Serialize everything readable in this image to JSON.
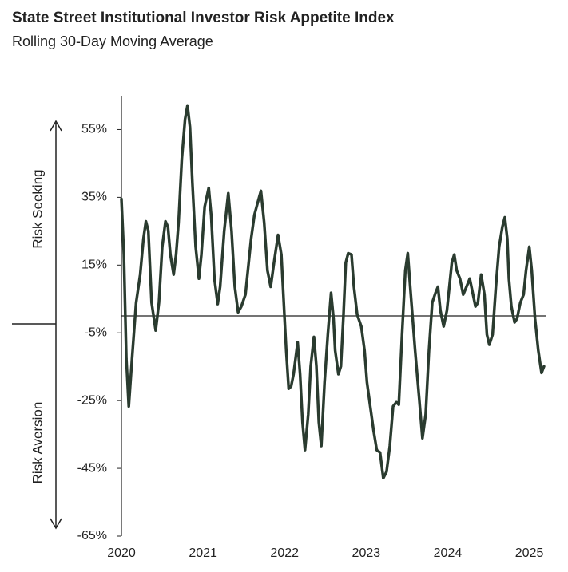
{
  "chart_data": {
    "type": "line",
    "title": "State Street Institutional Investor Risk Appetite Index",
    "subtitle": "Rolling 30-Day Moving Average",
    "annotations": [
      "Risk Seeking",
      "Risk Aversion"
    ],
    "x": [
      2020.0,
      2020.03,
      2020.06,
      2020.09,
      2020.13,
      2020.18,
      2020.23,
      2020.27,
      2020.3,
      2020.33,
      2020.37,
      2020.42,
      2020.46,
      2020.5,
      2020.54,
      2020.57,
      2020.6,
      2020.64,
      2020.67,
      2020.7,
      2020.74,
      2020.78,
      2020.81,
      2020.84,
      2020.87,
      2020.91,
      2020.95,
      2020.98,
      2021.02,
      2021.07,
      2021.1,
      2021.14,
      2021.18,
      2021.21,
      2021.26,
      2021.31,
      2021.35,
      2021.39,
      2021.43,
      2021.47,
      2021.52,
      2021.56,
      2021.59,
      2021.63,
      2021.67,
      2021.71,
      2021.75,
      2021.79,
      2021.83,
      2021.87,
      2021.92,
      2021.96,
      2021.99,
      2022.02,
      2022.05,
      2022.08,
      2022.11,
      2022.16,
      2022.19,
      2022.22,
      2022.25,
      2022.29,
      2022.32,
      2022.36,
      2022.39,
      2022.42,
      2022.45,
      2022.49,
      2022.53,
      2022.57,
      2022.6,
      2022.62,
      2022.66,
      2022.69,
      2022.72,
      2022.75,
      2022.78,
      2022.82,
      2022.85,
      2022.89,
      2022.94,
      2022.98,
      2023.01,
      2023.05,
      2023.09,
      2023.13,
      2023.17,
      2023.21,
      2023.25,
      2023.29,
      2023.33,
      2023.37,
      2023.4,
      2023.44,
      2023.48,
      2023.51,
      2023.54,
      2023.57,
      2023.6,
      2023.65,
      2023.69,
      2023.73,
      2023.77,
      2023.81,
      2023.85,
      2023.88,
      2023.91,
      2023.95,
      2023.99,
      2024.02,
      2024.05,
      2024.08,
      2024.11,
      2024.15,
      2024.19,
      2024.23,
      2024.27,
      2024.31,
      2024.34,
      2024.37,
      2024.41,
      2024.45,
      2024.48,
      2024.51,
      2024.55,
      2024.59,
      2024.63,
      2024.67,
      2024.7,
      2024.73,
      2024.75,
      2024.78,
      2024.82,
      2024.85,
      2024.89,
      2024.93,
      2024.96,
      2025.0,
      2025.03,
      2025.07,
      2025.11,
      2025.15,
      2025.18
    ],
    "series": [
      {
        "color": "#2a3b2f",
        "values": [
          34.5,
          18.1,
          -12.6,
          -26.7,
          -12.6,
          3.9,
          12.2,
          22.8,
          27.9,
          25.1,
          3.9,
          -4.3,
          3.9,
          20.4,
          27.9,
          26.3,
          18.1,
          12.2,
          18.1,
          27.5,
          46.3,
          58.1,
          62.1,
          55.7,
          39.2,
          20.4,
          11.0,
          18.1,
          32.2,
          37.8,
          29.8,
          11.0,
          3.5,
          8.6,
          25.1,
          36.2,
          25.1,
          8.6,
          1.1,
          2.8,
          6.3,
          15.7,
          22.8,
          29.8,
          33.4,
          36.9,
          27.5,
          13.4,
          8.6,
          15.7,
          23.9,
          18.1,
          3.9,
          -10.2,
          -21.5,
          -20.8,
          -17.2,
          -7.8,
          -17.2,
          -31.4,
          -39.6,
          -29.0,
          -14.9,
          -6.2,
          -14.9,
          -31.4,
          -38.4,
          -19.6,
          -5.5,
          6.8,
          -0.8,
          -10.2,
          -17.2,
          -14.9,
          -0.8,
          15.7,
          18.5,
          18.1,
          8.6,
          0.4,
          -3.1,
          -10.2,
          -19.6,
          -26.7,
          -33.7,
          -39.6,
          -40.3,
          -47.9,
          -46.0,
          -38.4,
          -26.7,
          -25.5,
          -26.2,
          -5.5,
          13.4,
          18.5,
          8.6,
          -0.8,
          -10.2,
          -24.3,
          -36.1,
          -29.0,
          -10.2,
          3.9,
          6.8,
          8.6,
          1.6,
          -3.1,
          1.6,
          8.6,
          15.7,
          18.1,
          13.4,
          11.0,
          6.3,
          8.6,
          11.0,
          6.3,
          2.8,
          3.9,
          12.2,
          6.3,
          -5.5,
          -8.5,
          -5.5,
          8.6,
          20.4,
          26.3,
          29.1,
          22.8,
          11.0,
          2.8,
          -1.9,
          -0.8,
          3.9,
          6.3,
          13.4,
          20.4,
          13.4,
          -0.8,
          -10.2,
          -16.8,
          -14.9
        ]
      }
    ],
    "xlim": [
      2020,
      2025.2
    ],
    "xticks": [
      2020,
      2021,
      2022,
      2023,
      2024,
      2025
    ],
    "ylim": [
      -65,
      65
    ],
    "yticks": [
      {
        "value": -65,
        "label": "-65%"
      },
      {
        "value": -45,
        "label": "-45%"
      },
      {
        "value": -25,
        "label": "-25%"
      },
      {
        "value": -5,
        "label": "-5%"
      },
      {
        "value": 15,
        "label": "15%"
      },
      {
        "value": 35,
        "label": "35%"
      },
      {
        "value": 55,
        "label": "55%"
      }
    ],
    "reference_line": 0
  }
}
